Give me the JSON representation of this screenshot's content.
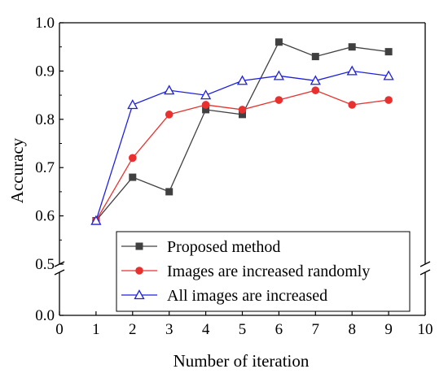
{
  "chart_data": {
    "type": "line",
    "xlabel": "Number of iteration",
    "ylabel": "Accuracy",
    "xlim": [
      0,
      10
    ],
    "x_ticks": [
      0,
      1,
      2,
      3,
      4,
      5,
      6,
      7,
      8,
      9,
      10
    ],
    "x_tick_labels": [
      "0",
      "1",
      "2",
      "3",
      "4",
      "5",
      "6",
      "7",
      "8",
      "9",
      "10"
    ],
    "y_axis_break": {
      "lower_range": [
        0.0,
        0.1
      ],
      "upper_range": [
        0.5,
        1.0
      ]
    },
    "y_ticks": [
      0.0,
      0.5,
      0.6,
      0.7,
      0.8,
      0.9,
      1.0
    ],
    "y_tick_labels": [
      "0.0",
      "0.5",
      "0.6",
      "0.7",
      "0.8",
      "0.9",
      "1.0"
    ],
    "grid": false,
    "legend_position": "bottom-right",
    "x": [
      1,
      2,
      3,
      4,
      5,
      6,
      7,
      8,
      9
    ],
    "series": [
      {
        "name": "Proposed method",
        "color": "#404040",
        "marker": "square",
        "values": [
          0.59,
          0.68,
          0.65,
          0.82,
          0.81,
          0.96,
          0.93,
          0.95,
          0.94
        ]
      },
      {
        "name": "Images are increased randomly",
        "color": "#e8312f",
        "marker": "circle",
        "values": [
          0.59,
          0.72,
          0.81,
          0.83,
          0.82,
          0.84,
          0.86,
          0.83,
          0.84
        ]
      },
      {
        "name": "All images are increased",
        "color": "#1f1fe0",
        "marker": "triangle-open",
        "values": [
          0.59,
          0.83,
          0.86,
          0.85,
          0.88,
          0.89,
          0.88,
          0.9,
          0.89
        ]
      }
    ]
  }
}
